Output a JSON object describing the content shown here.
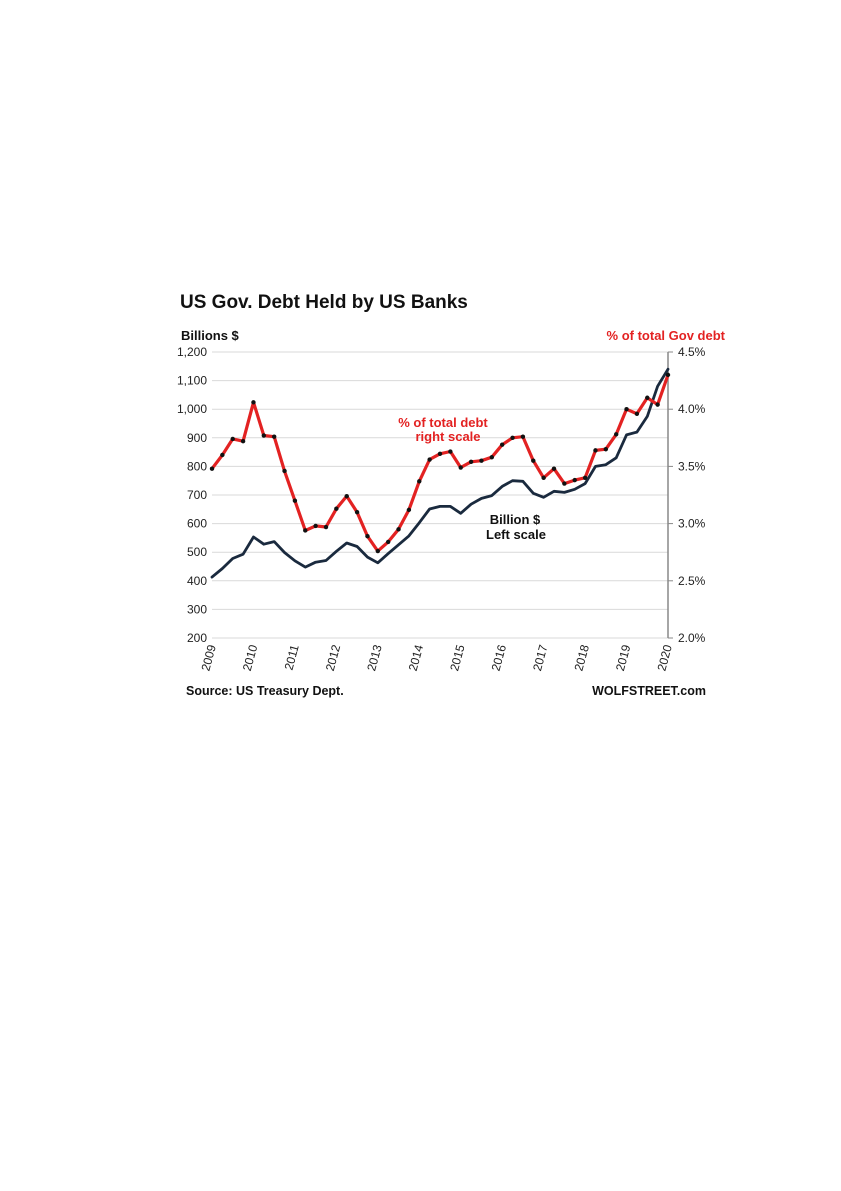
{
  "chart_data": {
    "type": "line",
    "title": "US Gov. Debt Held by US Banks",
    "left_axis_label": "Billions $",
    "right_axis_label": "% of total Gov debt",
    "left_ylim": [
      200,
      1200
    ],
    "right_ylim": [
      2.0,
      4.5
    ],
    "left_ticks": [
      "200",
      "300",
      "400",
      "500",
      "600",
      "700",
      "800",
      "900",
      "1,000",
      "1,100",
      "1,200"
    ],
    "right_ticks": [
      "2.0%",
      "2.5%",
      "3.0%",
      "3.5%",
      "4.0%",
      "4.5%"
    ],
    "x_ticks": [
      "2009",
      "2010",
      "2011",
      "2012",
      "2013",
      "2014",
      "2015",
      "2016",
      "2017",
      "2018",
      "2019",
      "2020"
    ],
    "xlim": [
      2009,
      2020
    ],
    "grid": true,
    "annotations": {
      "red": [
        "% of total debt",
        "right scale"
      ],
      "black": [
        "Billion $",
        "Left scale"
      ]
    },
    "series": [
      {
        "key": "pct",
        "axis": "right",
        "color": "#e32222",
        "markers": true,
        "x": [
          2009.0,
          2009.25,
          2009.5,
          2009.75,
          2010.0,
          2010.25,
          2010.5,
          2010.75,
          2011.0,
          2011.25,
          2011.5,
          2011.75,
          2012.0,
          2012.25,
          2012.5,
          2012.75,
          2013.0,
          2013.25,
          2013.5,
          2013.75,
          2014.0,
          2014.25,
          2014.5,
          2014.75,
          2015.0,
          2015.25,
          2015.5,
          2015.75,
          2016.0,
          2016.25,
          2016.5,
          2016.75,
          2017.0,
          2017.25,
          2017.5,
          2017.75,
          2018.0,
          2018.25,
          2018.5,
          2018.75,
          2019.0,
          2019.25,
          2019.5,
          2019.75,
          2020.0
        ],
        "values": [
          3.48,
          3.6,
          3.74,
          3.72,
          4.06,
          3.77,
          3.76,
          3.46,
          3.2,
          2.94,
          2.98,
          2.97,
          3.13,
          3.24,
          3.1,
          2.89,
          2.76,
          2.84,
          2.95,
          3.12,
          3.37,
          3.56,
          3.61,
          3.63,
          3.49,
          3.54,
          3.55,
          3.58,
          3.69,
          3.75,
          3.76,
          3.55,
          3.4,
          3.48,
          3.35,
          3.38,
          3.4,
          3.64,
          3.65,
          3.78,
          4.0,
          3.96,
          4.1,
          4.04,
          4.3
        ]
      },
      {
        "key": "billions",
        "axis": "left",
        "color": "#1a2a3e",
        "markers": false,
        "x": [
          2009.0,
          2009.25,
          2009.5,
          2009.75,
          2010.0,
          2010.25,
          2010.5,
          2010.75,
          2011.0,
          2011.25,
          2011.5,
          2011.75,
          2012.0,
          2012.25,
          2012.5,
          2012.75,
          2013.0,
          2013.25,
          2013.5,
          2013.75,
          2014.0,
          2014.25,
          2014.5,
          2014.75,
          2015.0,
          2015.25,
          2015.5,
          2015.75,
          2016.0,
          2016.25,
          2016.5,
          2016.75,
          2017.0,
          2017.25,
          2017.5,
          2017.75,
          2018.0,
          2018.25,
          2018.5,
          2018.75,
          2019.0,
          2019.25,
          2019.5,
          2019.75,
          2020.0
        ],
        "values": [
          413,
          443,
          478,
          493,
          553,
          528,
          537,
          499,
          470,
          448,
          465,
          471,
          503,
          532,
          520,
          483,
          463,
          495,
          526,
          557,
          603,
          651,
          660,
          660,
          636,
          668,
          688,
          698,
          730,
          750,
          748,
          706,
          692,
          713,
          709,
          720,
          740,
          800,
          806,
          830,
          910,
          920,
          975,
          1080,
          1140
        ]
      }
    ]
  },
  "footer": {
    "source": "Source: US Treasury Dept.",
    "brand": "WOLFSTREET.com"
  }
}
